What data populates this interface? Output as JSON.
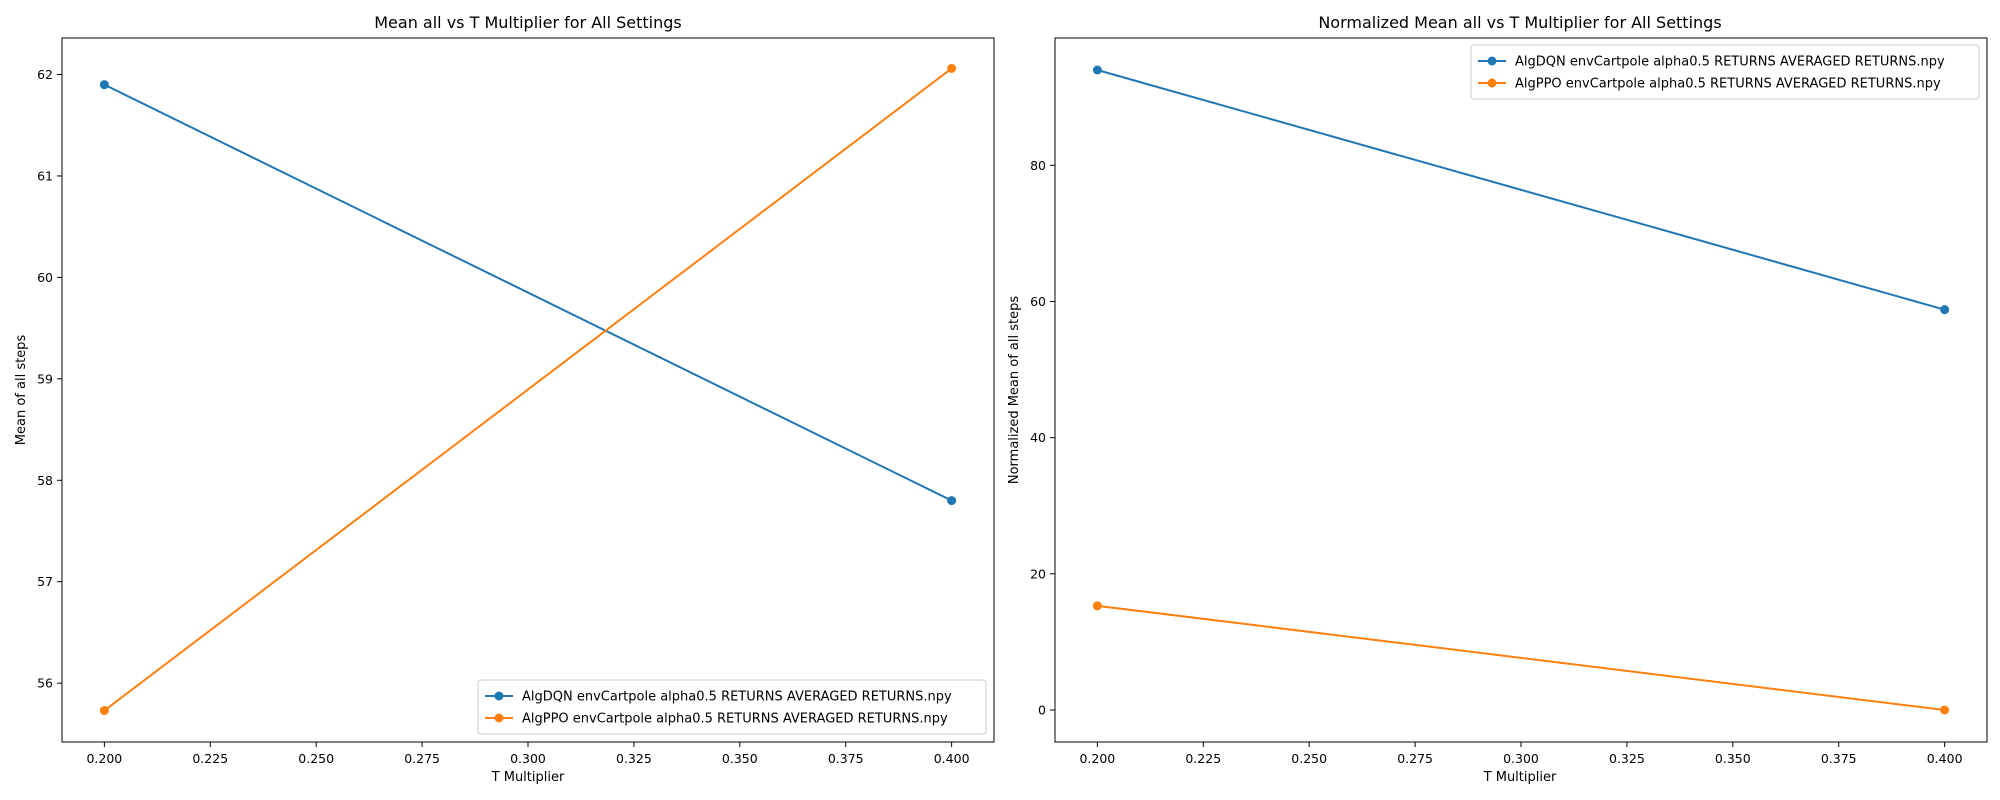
{
  "chart_data": [
    {
      "type": "line",
      "title": "Mean all vs T Multiplier for All Settings",
      "xlabel": "T Multiplier",
      "ylabel": "Mean of all steps",
      "xlim": [
        0.19,
        0.41
      ],
      "ylim": [
        55.42,
        62.36
      ],
      "xticks": [
        0.2,
        0.225,
        0.25,
        0.275,
        0.3,
        0.325,
        0.35,
        0.375,
        0.4
      ],
      "xtick_labels": [
        "0.200",
        "0.225",
        "0.250",
        "0.275",
        "0.300",
        "0.325",
        "0.350",
        "0.375",
        "0.400"
      ],
      "yticks": [
        56,
        57,
        58,
        59,
        60,
        61,
        62
      ],
      "ytick_labels": [
        "56",
        "57",
        "58",
        "59",
        "60",
        "61",
        "62"
      ],
      "legend_position": "lower-right",
      "grid": false,
      "series": [
        {
          "name": "AlgDQN envCartpole alpha0.5 RETURNS AVERAGED RETURNS.npy",
          "color": "#1f77b4",
          "x": [
            0.2,
            0.4
          ],
          "y": [
            61.9,
            57.8
          ]
        },
        {
          "name": "AlgPPO envCartpole alpha0.5 RETURNS AVERAGED RETURNS.npy",
          "color": "#ff7f0e",
          "x": [
            0.2,
            0.4
          ],
          "y": [
            55.73,
            62.06
          ]
        }
      ]
    },
    {
      "type": "line",
      "title": "Normalized Mean all vs T Multiplier for All Settings",
      "xlabel": "T Multiplier",
      "ylabel": "Normalized Mean of all steps",
      "xlim": [
        0.19,
        0.41
      ],
      "ylim": [
        -4.7,
        98.7
      ],
      "xticks": [
        0.2,
        0.225,
        0.25,
        0.275,
        0.3,
        0.325,
        0.35,
        0.375,
        0.4
      ],
      "xtick_labels": [
        "0.200",
        "0.225",
        "0.250",
        "0.275",
        "0.300",
        "0.325",
        "0.350",
        "0.375",
        "0.400"
      ],
      "yticks": [
        0,
        20,
        40,
        60,
        80
      ],
      "ytick_labels": [
        "0",
        "20",
        "40",
        "60",
        "80"
      ],
      "legend_position": "upper-right",
      "grid": false,
      "series": [
        {
          "name": "AlgDQN envCartpole alpha0.5 RETURNS AVERAGED RETURNS.npy",
          "color": "#1f77b4",
          "x": [
            0.2,
            0.4
          ],
          "y": [
            94.0,
            58.8
          ]
        },
        {
          "name": "AlgPPO envCartpole alpha0.5 RETURNS AVERAGED RETURNS.npy",
          "color": "#ff7f0e",
          "x": [
            0.2,
            0.4
          ],
          "y": [
            15.3,
            0.0
          ]
        }
      ]
    }
  ]
}
